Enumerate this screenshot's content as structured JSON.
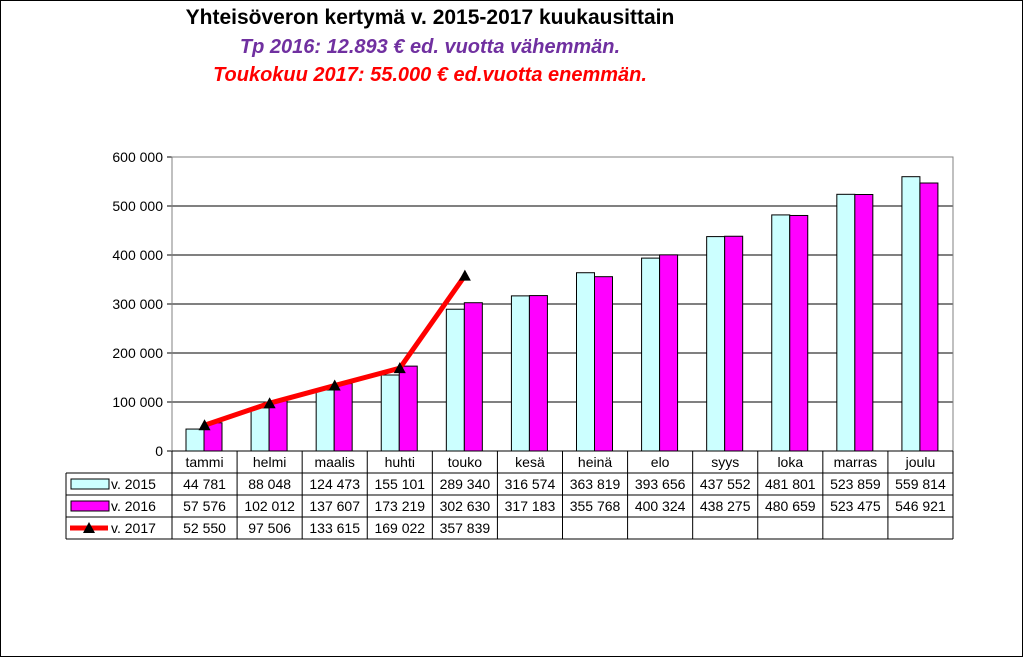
{
  "header": {
    "title": "Yhteisöveron kertymä  v. 2015-2017 kuukausittain",
    "subtitle1": "Tp 2016: 12.893 € ed. vuotta vähemmän.",
    "subtitle2": "Toukokuu 2017: 55.000 € ed.vuotta enemmän.",
    "subtitle1_color": "#7030A0",
    "subtitle2_color": "#FF0000"
  },
  "chart_data": {
    "type": "bar",
    "categories": [
      "tammi",
      "helmi",
      "maalis",
      "huhti",
      "touko",
      "kesä",
      "heinä",
      "elo",
      "syys",
      "loka",
      "marras",
      "joulu"
    ],
    "series": [
      {
        "name": "v. 2015",
        "type": "bar",
        "color": "#CCFFFF",
        "values": [
          44781,
          88048,
          124473,
          155101,
          289340,
          316574,
          363819,
          393656,
          437552,
          481801,
          523859,
          559814
        ],
        "labels": [
          "44 781",
          "88 048",
          "124 473",
          "155 101",
          "289 340",
          "316 574",
          "363 819",
          "393 656",
          "437 552",
          "481 801",
          "523 859",
          "559 814"
        ]
      },
      {
        "name": "v. 2016",
        "type": "bar",
        "color": "#FF00FF",
        "values": [
          57576,
          102012,
          137607,
          173219,
          302630,
          317183,
          355768,
          400324,
          438275,
          480659,
          523475,
          546921
        ],
        "labels": [
          "57 576",
          "102 012",
          "137 607",
          "173 219",
          "302 630",
          "317 183",
          "355 768",
          "400 324",
          "438 275",
          "480 659",
          "523 475",
          "546 921"
        ]
      },
      {
        "name": "v. 2017",
        "type": "line",
        "color": "#FF0000",
        "marker": "triangle",
        "values": [
          52550,
          97506,
          133615,
          169022,
          357839,
          null,
          null,
          null,
          null,
          null,
          null,
          null
        ],
        "labels": [
          "52 550",
          "97 506",
          "133 615",
          "169 022",
          "357 839",
          "",
          "",
          "",
          "",
          "",
          "",
          ""
        ]
      }
    ],
    "ylim": [
      0,
      600000
    ],
    "yticks": [
      0,
      100000,
      200000,
      300000,
      400000,
      500000,
      600000
    ],
    "ytick_labels": [
      "0",
      "100 000",
      "200 000",
      "300 000",
      "400 000",
      "500 000",
      "600 000"
    ],
    "grid": true,
    "data_table": true
  }
}
